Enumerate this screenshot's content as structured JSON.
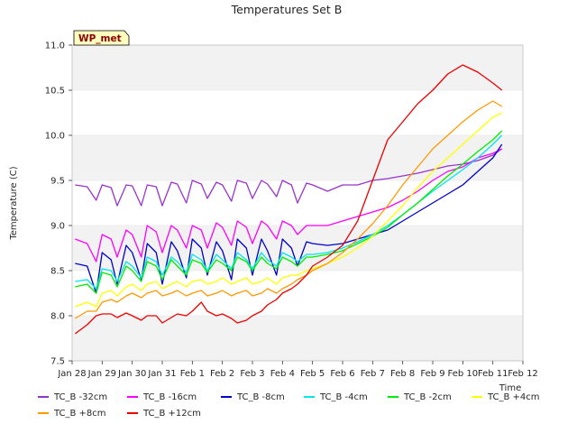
{
  "chart_data": {
    "type": "line",
    "title": "Temperatures Set B",
    "xlabel": "Time",
    "ylabel": "Temperature (C)",
    "ylim": [
      7.5,
      11.0
    ],
    "yticks": [
      7.5,
      8.0,
      8.5,
      9.0,
      9.5,
      10.0,
      10.5,
      11.0
    ],
    "ytick_labels": [
      "7.5",
      "8.0",
      "8.5",
      "9.0",
      "9.5",
      "10.0",
      "10.5",
      "11.0"
    ],
    "xlim": [
      0,
      15
    ],
    "xticks": [
      0,
      1,
      2,
      3,
      4,
      5,
      6,
      7,
      8,
      9,
      10,
      11,
      12,
      13,
      14,
      15
    ],
    "xtick_labels": [
      "Jan 28",
      "Jan 29",
      "Jan 30",
      "Jan 31",
      "Feb 1",
      "Feb 2",
      "Feb 3",
      "Feb 4",
      "Feb 5",
      "Feb 6",
      "Feb 7",
      "Feb 8",
      "Feb 9",
      "Feb 10",
      "Feb 11",
      "Feb 12"
    ],
    "x_note": "x in days since Jan 28",
    "grid": "horizontal bands",
    "annotation": "WP_met",
    "legend_position": "bottom",
    "series": [
      {
        "name": "TC_B -32cm",
        "color": "#9933cc",
        "x": [
          0.1,
          0.5,
          0.8,
          1.0,
          1.3,
          1.5,
          1.8,
          2.0,
          2.3,
          2.5,
          2.8,
          3.0,
          3.3,
          3.5,
          3.8,
          4.0,
          4.3,
          4.5,
          4.8,
          5.0,
          5.3,
          5.5,
          5.8,
          6.0,
          6.3,
          6.5,
          6.8,
          7.0,
          7.3,
          7.5,
          7.8,
          8.0,
          8.5,
          9.0,
          9.5,
          10.0,
          10.5,
          11.0,
          11.5,
          12.0,
          12.5,
          13.0,
          13.5,
          14.0,
          14.3
        ],
        "y": [
          9.45,
          9.43,
          9.28,
          9.45,
          9.42,
          9.22,
          9.45,
          9.44,
          9.22,
          9.45,
          9.43,
          9.22,
          9.48,
          9.46,
          9.25,
          9.5,
          9.46,
          9.3,
          9.48,
          9.45,
          9.27,
          9.5,
          9.47,
          9.3,
          9.5,
          9.46,
          9.32,
          9.5,
          9.45,
          9.25,
          9.47,
          9.45,
          9.38,
          9.45,
          9.45,
          9.5,
          9.52,
          9.55,
          9.58,
          9.62,
          9.66,
          9.68,
          9.72,
          9.78,
          9.85
        ]
      },
      {
        "name": "TC_B -16cm",
        "color": "#ff00ff",
        "x": [
          0.1,
          0.5,
          0.8,
          1.0,
          1.3,
          1.5,
          1.8,
          2.0,
          2.3,
          2.5,
          2.8,
          3.0,
          3.3,
          3.5,
          3.8,
          4.0,
          4.3,
          4.5,
          4.8,
          5.0,
          5.3,
          5.5,
          5.8,
          6.0,
          6.3,
          6.5,
          6.8,
          7.0,
          7.3,
          7.5,
          7.8,
          8.0,
          8.5,
          9.0,
          9.5,
          10.0,
          10.5,
          11.0,
          11.5,
          12.0,
          12.5,
          13.0,
          13.5,
          14.0,
          14.3
        ],
        "y": [
          8.85,
          8.8,
          8.6,
          8.9,
          8.85,
          8.65,
          8.95,
          8.9,
          8.65,
          9.0,
          8.93,
          8.7,
          9.0,
          8.95,
          8.75,
          9.0,
          8.95,
          8.75,
          9.03,
          8.98,
          8.78,
          9.05,
          8.98,
          8.8,
          9.05,
          9.0,
          8.85,
          9.05,
          9.0,
          8.9,
          9.0,
          9.0,
          9.0,
          9.05,
          9.1,
          9.15,
          9.2,
          9.28,
          9.38,
          9.5,
          9.6,
          9.65,
          9.75,
          9.8,
          9.85
        ]
      },
      {
        "name": "TC_B -8cm",
        "color": "#0000cc",
        "x": [
          0.1,
          0.5,
          0.8,
          1.0,
          1.3,
          1.5,
          1.8,
          2.0,
          2.3,
          2.5,
          2.8,
          3.0,
          3.3,
          3.5,
          3.8,
          4.0,
          4.3,
          4.5,
          4.8,
          5.0,
          5.3,
          5.5,
          5.8,
          6.0,
          6.3,
          6.5,
          6.8,
          7.0,
          7.3,
          7.5,
          7.8,
          8.0,
          8.5,
          9.0,
          9.5,
          10.0,
          10.5,
          11.0,
          11.5,
          12.0,
          12.5,
          13.0,
          13.5,
          14.0,
          14.3
        ],
        "y": [
          8.58,
          8.55,
          8.25,
          8.7,
          8.62,
          8.35,
          8.78,
          8.7,
          8.4,
          8.8,
          8.7,
          8.35,
          8.82,
          8.72,
          8.42,
          8.85,
          8.75,
          8.45,
          8.82,
          8.72,
          8.4,
          8.85,
          8.75,
          8.45,
          8.85,
          8.72,
          8.45,
          8.85,
          8.75,
          8.55,
          8.82,
          8.8,
          8.78,
          8.8,
          8.85,
          8.9,
          8.95,
          9.05,
          9.15,
          9.25,
          9.35,
          9.45,
          9.6,
          9.75,
          9.9
        ]
      },
      {
        "name": "TC_B -4cm",
        "color": "#00e5ee",
        "x": [
          0.1,
          0.5,
          0.8,
          1.0,
          1.3,
          1.5,
          1.8,
          2.0,
          2.3,
          2.5,
          2.8,
          3.0,
          3.3,
          3.5,
          3.8,
          4.0,
          4.3,
          4.5,
          4.8,
          5.0,
          5.3,
          5.5,
          5.8,
          6.0,
          6.3,
          6.5,
          6.8,
          7.0,
          7.3,
          7.5,
          7.8,
          8.0,
          8.5,
          9.0,
          9.5,
          10.0,
          10.5,
          11.0,
          11.5,
          12.0,
          12.5,
          13.0,
          13.5,
          14.0,
          14.3
        ],
        "y": [
          8.38,
          8.4,
          8.3,
          8.52,
          8.5,
          8.38,
          8.6,
          8.55,
          8.42,
          8.65,
          8.6,
          8.45,
          8.65,
          8.6,
          8.48,
          8.68,
          8.62,
          8.5,
          8.68,
          8.62,
          8.52,
          8.7,
          8.62,
          8.52,
          8.7,
          8.62,
          8.55,
          8.7,
          8.65,
          8.6,
          8.68,
          8.68,
          8.7,
          8.75,
          8.82,
          8.9,
          9.0,
          9.12,
          9.25,
          9.38,
          9.5,
          9.62,
          9.75,
          9.9,
          10.0
        ]
      },
      {
        "name": "TC_B -2cm",
        "color": "#00ee00",
        "x": [
          0.1,
          0.5,
          0.8,
          1.0,
          1.3,
          1.5,
          1.8,
          2.0,
          2.3,
          2.5,
          2.8,
          3.0,
          3.3,
          3.5,
          3.8,
          4.0,
          4.3,
          4.5,
          4.8,
          5.0,
          5.3,
          5.5,
          5.8,
          6.0,
          6.3,
          6.5,
          6.8,
          7.0,
          7.3,
          7.5,
          7.8,
          8.0,
          8.5,
          9.0,
          9.5,
          10.0,
          10.5,
          11.0,
          11.5,
          12.0,
          12.5,
          13.0,
          13.5,
          14.0,
          14.3
        ],
        "y": [
          8.32,
          8.35,
          8.25,
          8.48,
          8.45,
          8.32,
          8.55,
          8.5,
          8.38,
          8.6,
          8.55,
          8.4,
          8.62,
          8.55,
          8.45,
          8.62,
          8.58,
          8.48,
          8.62,
          8.58,
          8.5,
          8.65,
          8.6,
          8.5,
          8.65,
          8.58,
          8.52,
          8.65,
          8.6,
          8.55,
          8.65,
          8.65,
          8.68,
          8.72,
          8.8,
          8.88,
          8.98,
          9.12,
          9.25,
          9.4,
          9.55,
          9.68,
          9.82,
          9.95,
          10.05
        ]
      },
      {
        "name": "TC_B +4cm",
        "color": "#ffff00",
        "x": [
          0.1,
          0.5,
          0.8,
          1.0,
          1.3,
          1.5,
          1.8,
          2.0,
          2.3,
          2.5,
          2.8,
          3.0,
          3.3,
          3.5,
          3.8,
          4.0,
          4.3,
          4.5,
          4.8,
          5.0,
          5.3,
          5.5,
          5.8,
          6.0,
          6.3,
          6.5,
          6.8,
          7.0,
          7.3,
          7.5,
          7.8,
          8.0,
          8.5,
          9.0,
          9.5,
          10.0,
          10.5,
          11.0,
          11.5,
          12.0,
          12.5,
          13.0,
          13.5,
          14.0,
          14.3
        ],
        "y": [
          8.1,
          8.15,
          8.1,
          8.25,
          8.28,
          8.22,
          8.32,
          8.35,
          8.28,
          8.35,
          8.38,
          8.3,
          8.35,
          8.38,
          8.32,
          8.38,
          8.4,
          8.35,
          8.38,
          8.42,
          8.35,
          8.38,
          8.42,
          8.35,
          8.38,
          8.42,
          8.35,
          8.42,
          8.45,
          8.45,
          8.5,
          8.52,
          8.58,
          8.65,
          8.75,
          8.88,
          9.05,
          9.22,
          9.42,
          9.6,
          9.75,
          9.9,
          10.05,
          10.2,
          10.25
        ]
      },
      {
        "name": "TC_B +8cm",
        "color": "#ff9900",
        "x": [
          0.1,
          0.5,
          0.8,
          1.0,
          1.3,
          1.5,
          1.8,
          2.0,
          2.3,
          2.5,
          2.8,
          3.0,
          3.3,
          3.5,
          3.8,
          4.0,
          4.3,
          4.5,
          4.8,
          5.0,
          5.3,
          5.5,
          5.8,
          6.0,
          6.3,
          6.5,
          6.8,
          7.0,
          7.3,
          7.5,
          7.8,
          8.0,
          8.5,
          9.0,
          9.5,
          10.0,
          10.5,
          11.0,
          11.5,
          12.0,
          12.5,
          13.0,
          13.5,
          14.0,
          14.3
        ],
        "y": [
          7.97,
          8.05,
          8.05,
          8.15,
          8.18,
          8.15,
          8.22,
          8.25,
          8.2,
          8.25,
          8.28,
          8.22,
          8.25,
          8.28,
          8.22,
          8.25,
          8.28,
          8.22,
          8.25,
          8.28,
          8.22,
          8.25,
          8.28,
          8.22,
          8.25,
          8.3,
          8.25,
          8.3,
          8.35,
          8.4,
          8.45,
          8.5,
          8.58,
          8.7,
          8.85,
          9.02,
          9.22,
          9.45,
          9.65,
          9.85,
          10.0,
          10.15,
          10.28,
          10.38,
          10.32
        ]
      },
      {
        "name": "TC_B +12cm",
        "color": "#ee0000",
        "x": [
          0.1,
          0.5,
          0.8,
          1.0,
          1.3,
          1.5,
          1.8,
          2.0,
          2.3,
          2.5,
          2.8,
          3.0,
          3.3,
          3.5,
          3.8,
          4.0,
          4.3,
          4.5,
          4.8,
          5.0,
          5.3,
          5.5,
          5.8,
          6.0,
          6.3,
          6.5,
          6.8,
          7.0,
          7.3,
          7.5,
          7.8,
          8.0,
          8.5,
          9.0,
          9.5,
          10.0,
          10.5,
          11.0,
          11.5,
          12.0,
          12.5,
          13.0,
          13.5,
          14.0,
          14.3
        ],
        "y": [
          7.8,
          7.9,
          8.0,
          8.02,
          8.02,
          7.98,
          8.03,
          8.0,
          7.95,
          8.0,
          8.0,
          7.92,
          7.98,
          8.02,
          8.0,
          8.05,
          8.15,
          8.05,
          8.0,
          8.02,
          7.97,
          7.92,
          7.95,
          8.0,
          8.05,
          8.12,
          8.18,
          8.25,
          8.3,
          8.35,
          8.45,
          8.55,
          8.65,
          8.78,
          9.05,
          9.5,
          9.95,
          10.15,
          10.35,
          10.5,
          10.68,
          10.78,
          10.7,
          10.58,
          10.5
        ]
      }
    ]
  }
}
